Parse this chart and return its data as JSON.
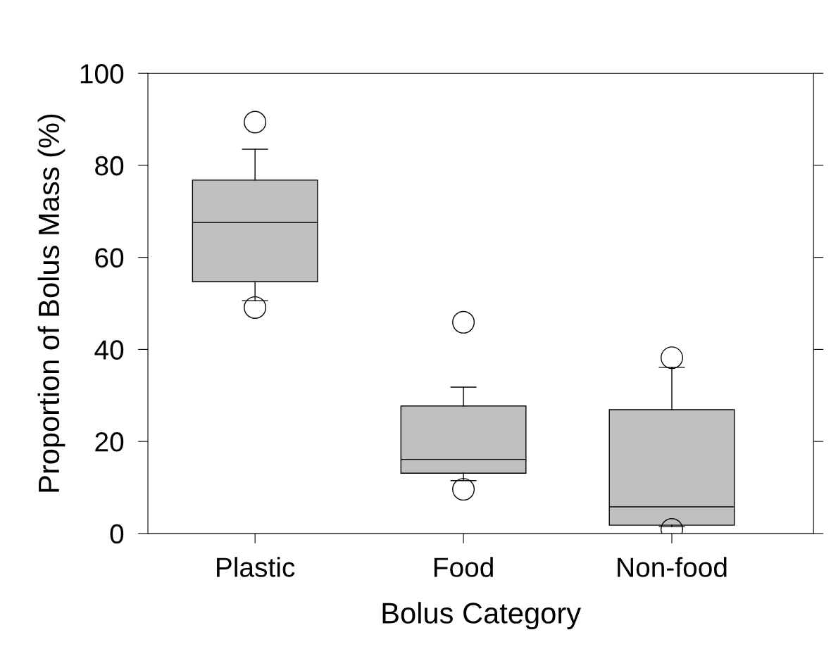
{
  "chart_data": {
    "type": "box",
    "xlabel": "Bolus Category",
    "ylabel": "Proportion of Bolus Mass (%)",
    "categories": [
      "Plastic",
      "Food",
      "Non-food"
    ],
    "boxes": [
      {
        "low": 50.6,
        "q1": 54.7,
        "median": 67.6,
        "q3": 76.8,
        "high": 83.5,
        "outliers": [
          89.4,
          49.1
        ]
      },
      {
        "low": 11.5,
        "q1": 13.1,
        "median": 16.1,
        "q3": 27.7,
        "high": 31.8,
        "outliers": [
          45.9,
          9.6
        ]
      },
      {
        "low": 1.5,
        "q1": 1.8,
        "median": 5.8,
        "q3": 26.9,
        "high": 36.1,
        "outliers": [
          38.2,
          0.9
        ]
      }
    ],
    "color": "#c0c0c0",
    "ylim": [
      0,
      100
    ],
    "yticks": [
      0,
      20,
      40,
      60,
      80,
      100
    ],
    "grid": false,
    "legend": false
  }
}
